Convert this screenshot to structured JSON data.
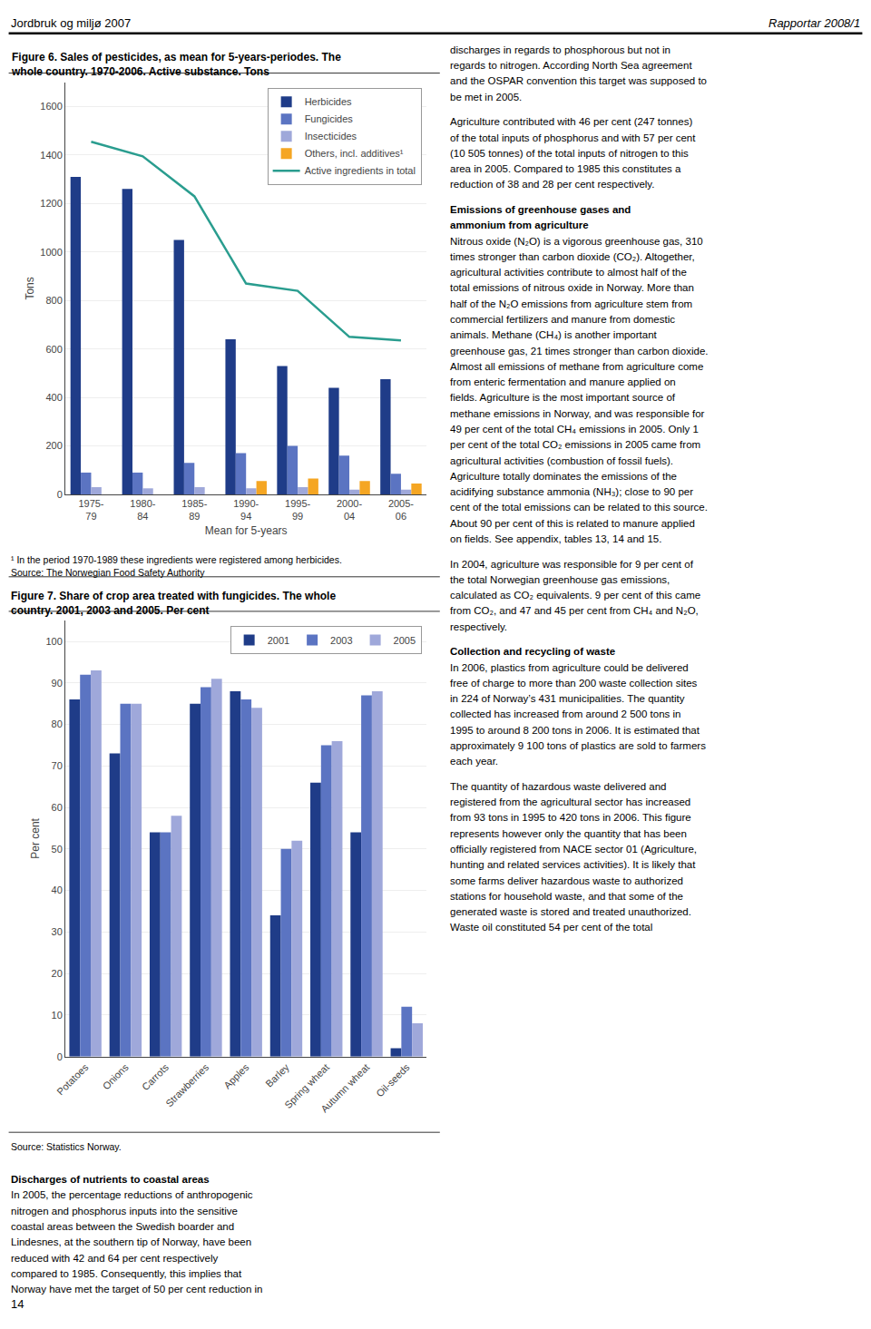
{
  "header": [
    "Jordbruk og miljø 2007",
    "Rapportar 2008/1"
  ],
  "footer": "14",
  "chart_data": [
    {
      "type": "bar",
      "title": "Figure 6. Sales of pesticides, as mean for 5-years-periodes. The\nwhole country. 1970-2006. Active substance. Tons",
      "x_label": "Mean for 5-years",
      "y_label": "Tons",
      "categories": [
        "1975-\n79",
        "1980-\n84",
        "1985-\n89",
        "1990-\n94",
        "1995-\n99",
        "2000-\n04",
        "2005-\n06"
      ],
      "series": [
        {
          "name": "Herbicides",
          "type": "bar",
          "color": "#1f3c88",
          "values": [
            1310,
            1260,
            1050,
            640,
            530,
            440,
            475
          ]
        },
        {
          "name": "Fungicides",
          "type": "bar",
          "color": "#5b74c2",
          "values": [
            90,
            90,
            130,
            170,
            200,
            160,
            85
          ]
        },
        {
          "name": "Insecticides",
          "type": "bar",
          "color": "#9fa8da",
          "values": [
            30,
            25,
            30,
            25,
            30,
            20,
            20
          ]
        },
        {
          "name": "Others, incl. additives¹",
          "type": "bar",
          "color": "#f5a623",
          "values": [
            0,
            0,
            0,
            55,
            65,
            55,
            45
          ]
        },
        {
          "name": "Active ingredients in total",
          "type": "line",
          "color": "#2a9d8f",
          "values": [
            1455,
            1395,
            1230,
            870,
            840,
            650,
            635
          ]
        }
      ],
      "ylim": [
        0,
        1700
      ],
      "yticks": [
        0,
        200,
        400,
        600,
        800,
        1000,
        1200,
        1400,
        1600
      ],
      "grid": true,
      "legend": "upper right",
      "annotations": [
        "¹ In the period 1970-1989 these ingredients were registered among herbicides.",
        "Source: The Norwegian Food Safety Authority"
      ]
    },
    {
      "type": "bar",
      "title": "Figure 7. Share of crop area treated with fungicides. The whole\ncountry. 2001, 2003 and 2005. Per cent",
      "y_label": "Per cent",
      "categories": [
        "Potatoes",
        "Onions",
        "Carrots",
        "Strawberries",
        "Apples",
        "Barley",
        "Spring wheat",
        "Autumn wheat",
        "Oil-seeds"
      ],
      "series": [
        {
          "name": "2001",
          "color": "#1f3c88",
          "values": [
            86,
            73,
            54,
            85,
            88,
            34,
            66,
            54,
            2
          ]
        },
        {
          "name": "2003",
          "color": "#5b74c2",
          "values": [
            92,
            85,
            54,
            89,
            86,
            50,
            75,
            87,
            12
          ]
        },
        {
          "name": "2005",
          "color": "#9fa8da",
          "values": [
            93,
            85,
            58,
            91,
            84,
            52,
            76,
            88,
            8
          ]
        }
      ],
      "ylim": [
        0,
        105
      ],
      "yticks": [
        0,
        10,
        20,
        30,
        40,
        50,
        60,
        70,
        80,
        90,
        100
      ],
      "grid": true,
      "legend": "upper right",
      "annotations": [
        "Source: Statistics Norway."
      ]
    }
  ],
  "text_columns": [
    [
      {
        "heading": [
          "Discharges of nutrients to coastal areas"
        ],
        "lines": [
          "In 2005, the percentage reductions of anthropogenic",
          "nitrogen and phosphorus inputs into the sensitive",
          "coastal areas between the Swedish boarder and",
          "Lindesnes, at the southern tip of Norway, have been",
          "reduced with 42 and 64 per cent respectively",
          "compared to 1985. Consequently, this implies that",
          "Norway have met the target of 50 per cent reduction in"
        ]
      }
    ],
    [
      {
        "lines": [
          "discharges in regards to phosphorous but not in",
          "regards to nitrogen. According North Sea agreement",
          "and the OSPAR convention this target was supposed to",
          "be met in 2005."
        ]
      },
      {
        "lines": [
          "Agriculture contributed with 46 per cent (247 tonnes)",
          "of the total inputs of phosphorus and with 57 per cent",
          "(10 505 tonnes) of the total inputs of nitrogen to this",
          "area in 2005. Compared to 1985 this constitutes a",
          "reduction of 38 and 28 per cent respectively."
        ]
      },
      {
        "heading": [
          "Emissions of greenhouse gases and",
          "ammonium from agriculture"
        ],
        "lines": [
          "Nitrous oxide (N₂O) is a vigorous greenhouse gas, 310",
          "times stronger than carbon dioxide (CO₂). Altogether,",
          "agricultural activities contribute to almost half of the",
          "total emissions of nitrous oxide in Norway. More than",
          "half of the N₂O emissions from agriculture stem from",
          "commercial fertilizers and manure from domestic",
          "animals. Methane (CH₄) is another important",
          "greenhouse gas, 21 times stronger than carbon dioxide.",
          "Almost all emissions of methane from agriculture come",
          "from enteric fermentation and manure applied on",
          "fields. Agriculture is the most important source of",
          "methane emissions in Norway, and was responsible for",
          "49 per cent of the total CH₄ emissions in 2005. Only 1",
          "per cent of the total CO₂ emissions in 2005 came from",
          "agricultural activities (combustion of fossil fuels).",
          "Agriculture totally dominates the emissions of the",
          "acidifying substance ammonia (NH₃); close to 90 per",
          "cent of the total emissions can be related to this source.",
          "About 90 per cent of this is related to manure applied",
          "on fields. See appendix, tables 13, 14 and 15."
        ]
      },
      {
        "lines": [
          "In 2004, agriculture was responsible for 9 per cent of",
          "the total Norwegian greenhouse gas emissions,",
          "calculated as CO₂ equivalents. 9 per cent of this came",
          "from CO₂, and 47 and 45 per cent from CH₄ and N₂O,",
          "respectively."
        ]
      },
      {
        "heading": [
          "Collection and recycling of waste"
        ],
        "lines": [
          "In 2006, plastics from agriculture could be delivered",
          "free of charge to more than 200 waste collection sites",
          "in 224 of Norway’s 431 municipalities. The quantity",
          "collected has increased from around 2 500 tons in",
          "1995 to around 8 200 tons in 2006. It is estimated that",
          "approximately 9 100 tons of plastics are sold to farmers",
          "each year."
        ]
      },
      {
        "lines": [
          "The quantity of hazardous waste delivered and",
          "registered from the agricultural sector has increased",
          "from 93 tons in 1995 to 420 tons in 2006. This figure",
          "represents however only the quantity that has been",
          "officially registered from NACE sector 01 (Agriculture,",
          "hunting and related services activities). It is likely that",
          "some farms deliver hazardous waste to authorized",
          "stations for household waste, and that some of the",
          "generated waste is stored and treated unauthorized.",
          "Waste oil constituted 54 per cent of the total"
        ]
      }
    ]
  ]
}
